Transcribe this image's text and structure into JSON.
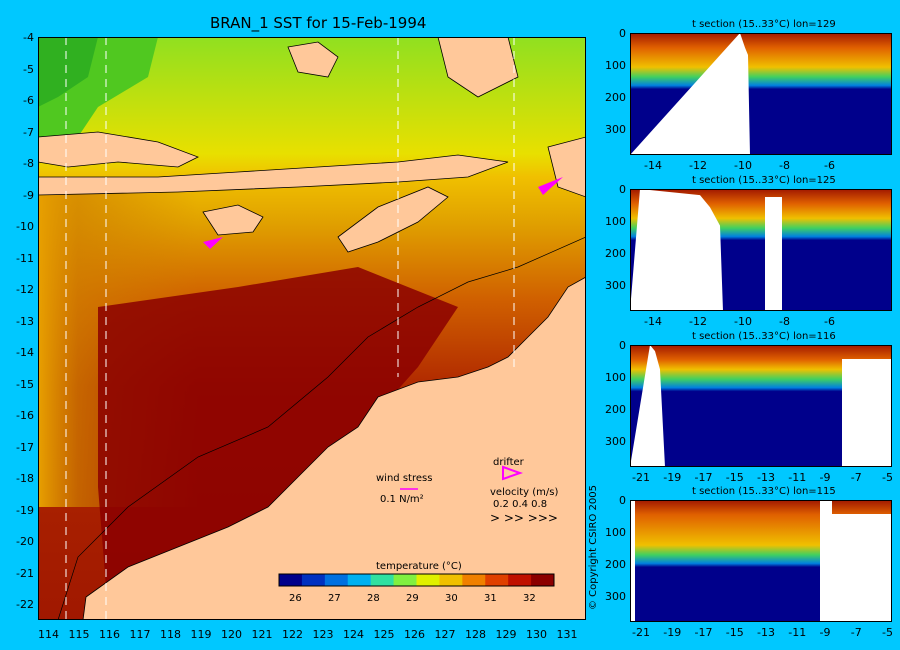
{
  "map": {
    "title": "BRAN_1 SST for 15-Feb-1994",
    "lat_labels": [
      "-4",
      "-5",
      "-6",
      "-7",
      "-8",
      "-9",
      "-10",
      "-11",
      "-12",
      "-13",
      "-14",
      "-15",
      "-16",
      "-17",
      "-18",
      "-19",
      "-20",
      "-21",
      "-22"
    ],
    "lon_labels": [
      "114",
      "115",
      "116",
      "117",
      "118",
      "119",
      "120",
      "121",
      "122",
      "123",
      "124",
      "125",
      "126",
      "127",
      "128",
      "129",
      "130",
      "131"
    ],
    "legend": {
      "wind_stress_label": "wind stress",
      "wind_stress_value": "0.1 N/m²",
      "drifter_label": "drifter",
      "velocity_label": "velocity (m/s)",
      "velocity_values": "0.2 0.4 0.8",
      "velocity_arrows": "> >> >>>"
    },
    "colorbar": {
      "title": "temperature (°C)",
      "ticks": [
        "26",
        "27",
        "28",
        "29",
        "30",
        "31",
        "32"
      ],
      "colors": [
        "#00008b",
        "#0030c0",
        "#0070e0",
        "#00b0f0",
        "#30e0a0",
        "#80f040",
        "#e0f000",
        "#f0c000",
        "#f08000",
        "#e04000",
        "#c01000",
        "#8b0000"
      ]
    },
    "section_lons_marked": [
      "114.5",
      "115.8",
      "125.5",
      "129.3"
    ]
  },
  "sections": [
    {
      "title": "t section (15..33°C) lon=129",
      "x_ticks": [
        "-14",
        "-12",
        "-10",
        "-8",
        "-6"
      ],
      "y_ticks": [
        "0",
        "100",
        "200",
        "300"
      ]
    },
    {
      "title": "t section (15..33°C) lon=125",
      "x_ticks": [
        "-14",
        "-12",
        "-10",
        "-8",
        "-6"
      ],
      "y_ticks": [
        "0",
        "100",
        "200",
        "300"
      ]
    },
    {
      "title": "t section (15..33°C) lon=116",
      "x_ticks": [
        "-21",
        "-19",
        "-17",
        "-15",
        "-13",
        "-11",
        "-9",
        "-7",
        "-5"
      ],
      "y_ticks": [
        "0",
        "100",
        "200",
        "300"
      ]
    },
    {
      "title": "t section (15..33°C) lon=115",
      "x_ticks": [
        "-21",
        "-19",
        "-17",
        "-15",
        "-13",
        "-11",
        "-9",
        "-7",
        "-5"
      ],
      "y_ticks": [
        "0",
        "100",
        "200",
        "300"
      ]
    }
  ],
  "copyright": "© Copyright CSIRO 2005"
}
